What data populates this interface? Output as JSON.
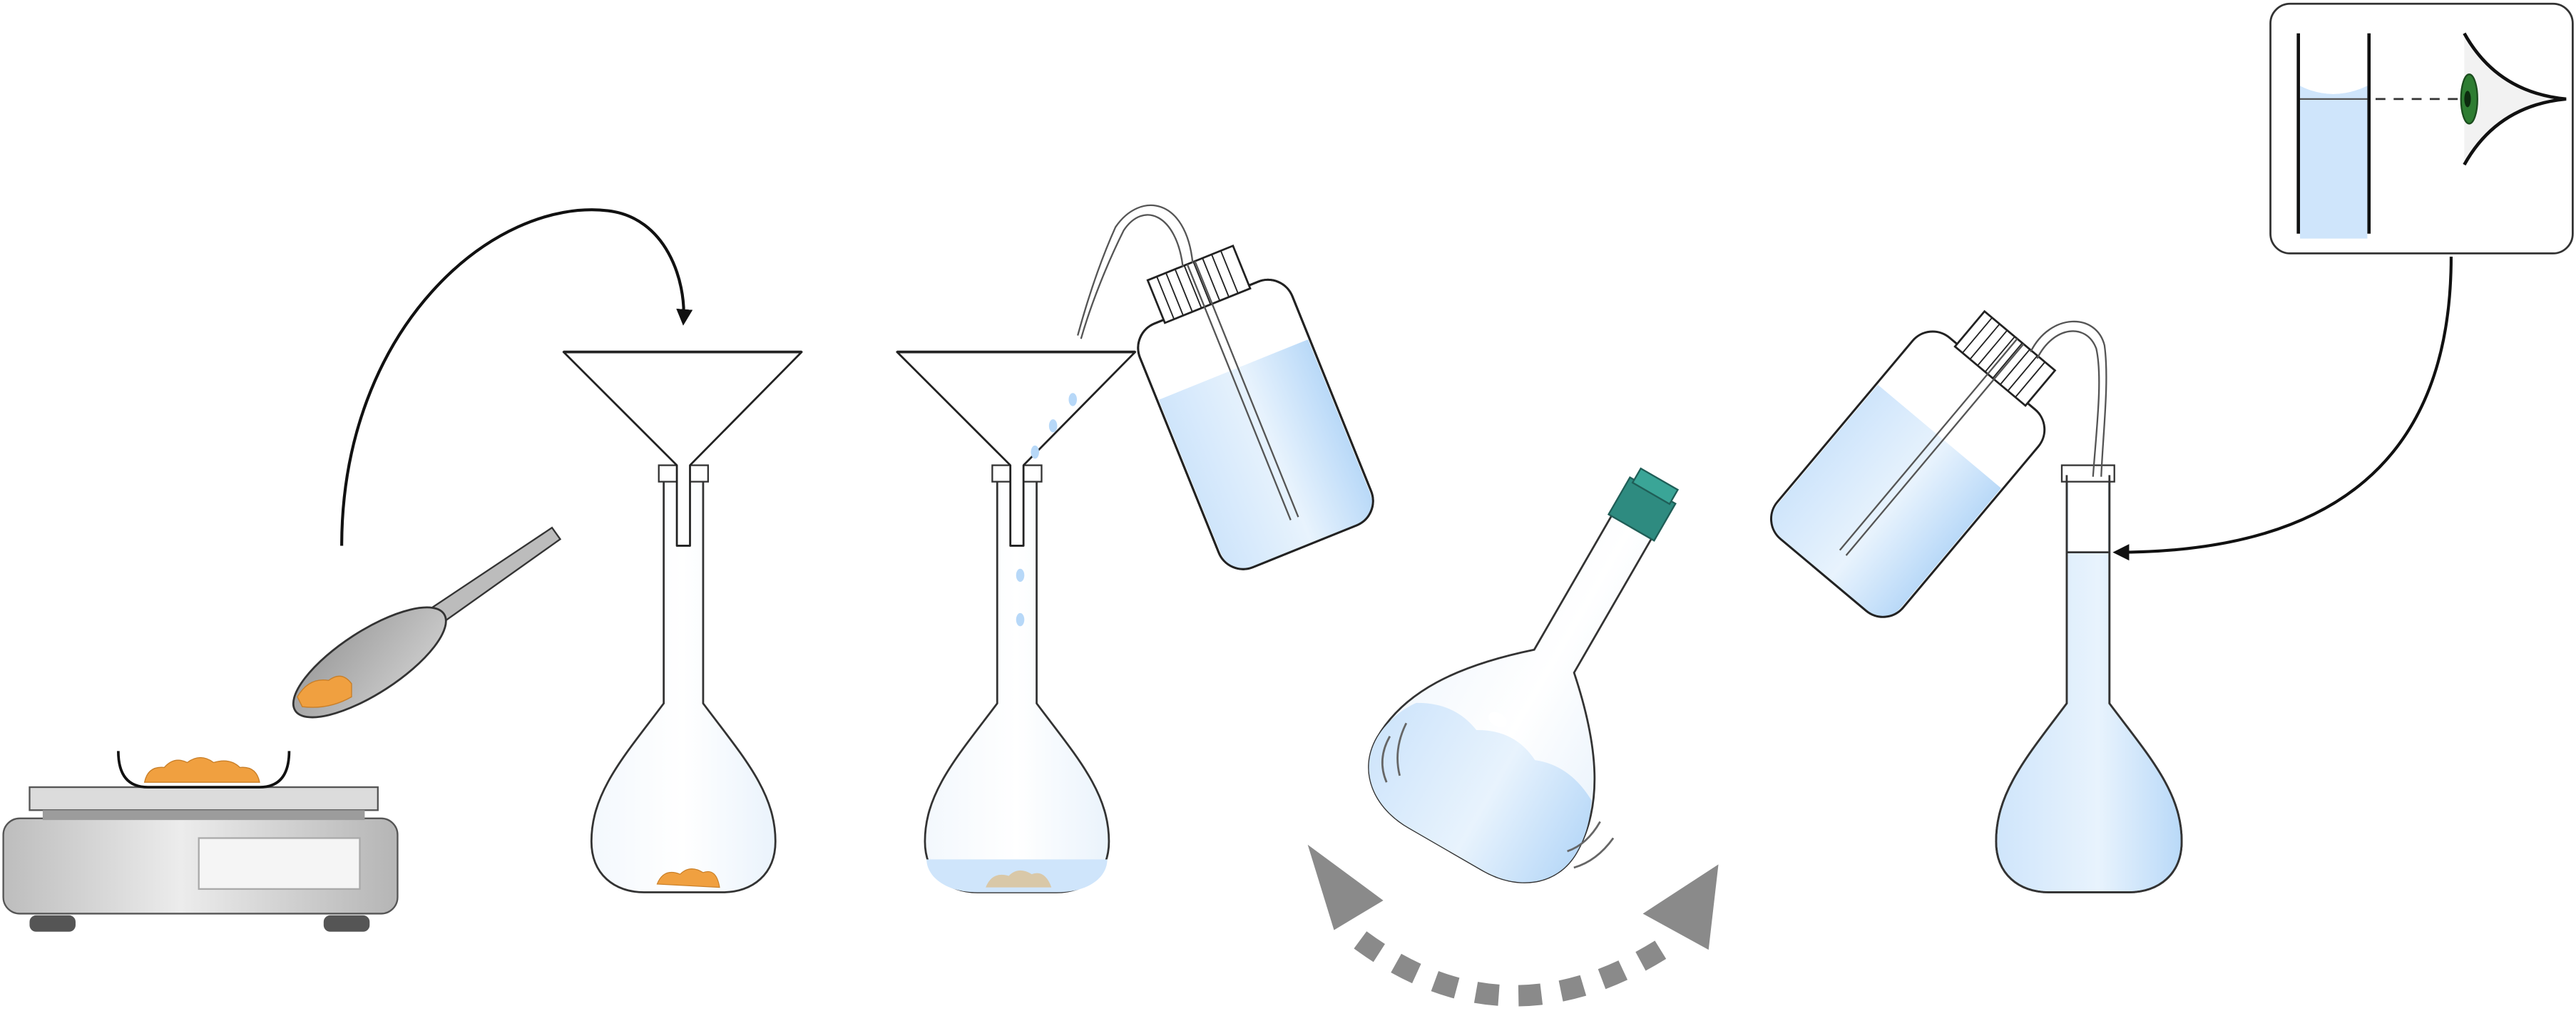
{
  "diagram": {
    "type": "process-illustration",
    "steps": [
      {
        "id": "weigh",
        "objects": [
          "balance-icon",
          "weighing-boat-icon",
          "solid-sample-icon",
          "spatula-icon"
        ]
      },
      {
        "id": "transfer",
        "objects": [
          "funnel-icon",
          "volumetric-flask-icon",
          "transfer-arrow-icon"
        ]
      },
      {
        "id": "dissolve",
        "objects": [
          "funnel-icon",
          "volumetric-flask-icon",
          "wash-bottle-icon"
        ]
      },
      {
        "id": "mix",
        "objects": [
          "stoppered-flask-icon",
          "swirl-arrow-icon"
        ]
      },
      {
        "id": "fill-to-mark",
        "objects": [
          "wash-bottle-icon",
          "volumetric-flask-icon",
          "meniscus-inset-icon",
          "eye-icon"
        ]
      }
    ],
    "colors": {
      "outline": "#1a1a1a",
      "liquid": "#cfe5fb",
      "liquid_dark": "#b7d8f8",
      "solid": "#f0a040",
      "solid_dissolved": "#d9c8a8",
      "balance_body": "#cfcfcf",
      "balance_display": "#f2f2f2",
      "stopper": "#2e8b80",
      "eye": "#2e7d32",
      "arrow_grey": "#8a8a8a"
    }
  }
}
